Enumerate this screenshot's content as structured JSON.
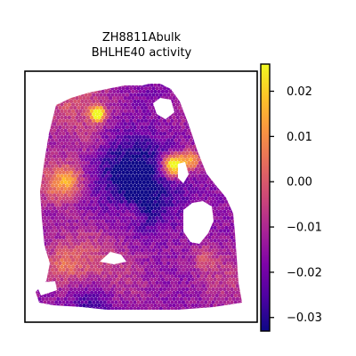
{
  "chart_data": {
    "type": "heatmap",
    "title": "ZH8811Abulk",
    "subtitle": "BHLHE40 activity",
    "xlabel": "",
    "ylabel": "",
    "grid": false,
    "colormap": "plasma",
    "colorbar": {
      "vmin": -0.033,
      "vmax": 0.026,
      "ticks": [
        0.02,
        0.01,
        0.0,
        -0.01,
        -0.02,
        -0.03
      ],
      "tick_labels": [
        "0.02",
        "0.01",
        "0.00",
        "−0.01",
        "−0.02",
        "−0.03"
      ]
    }
  }
}
